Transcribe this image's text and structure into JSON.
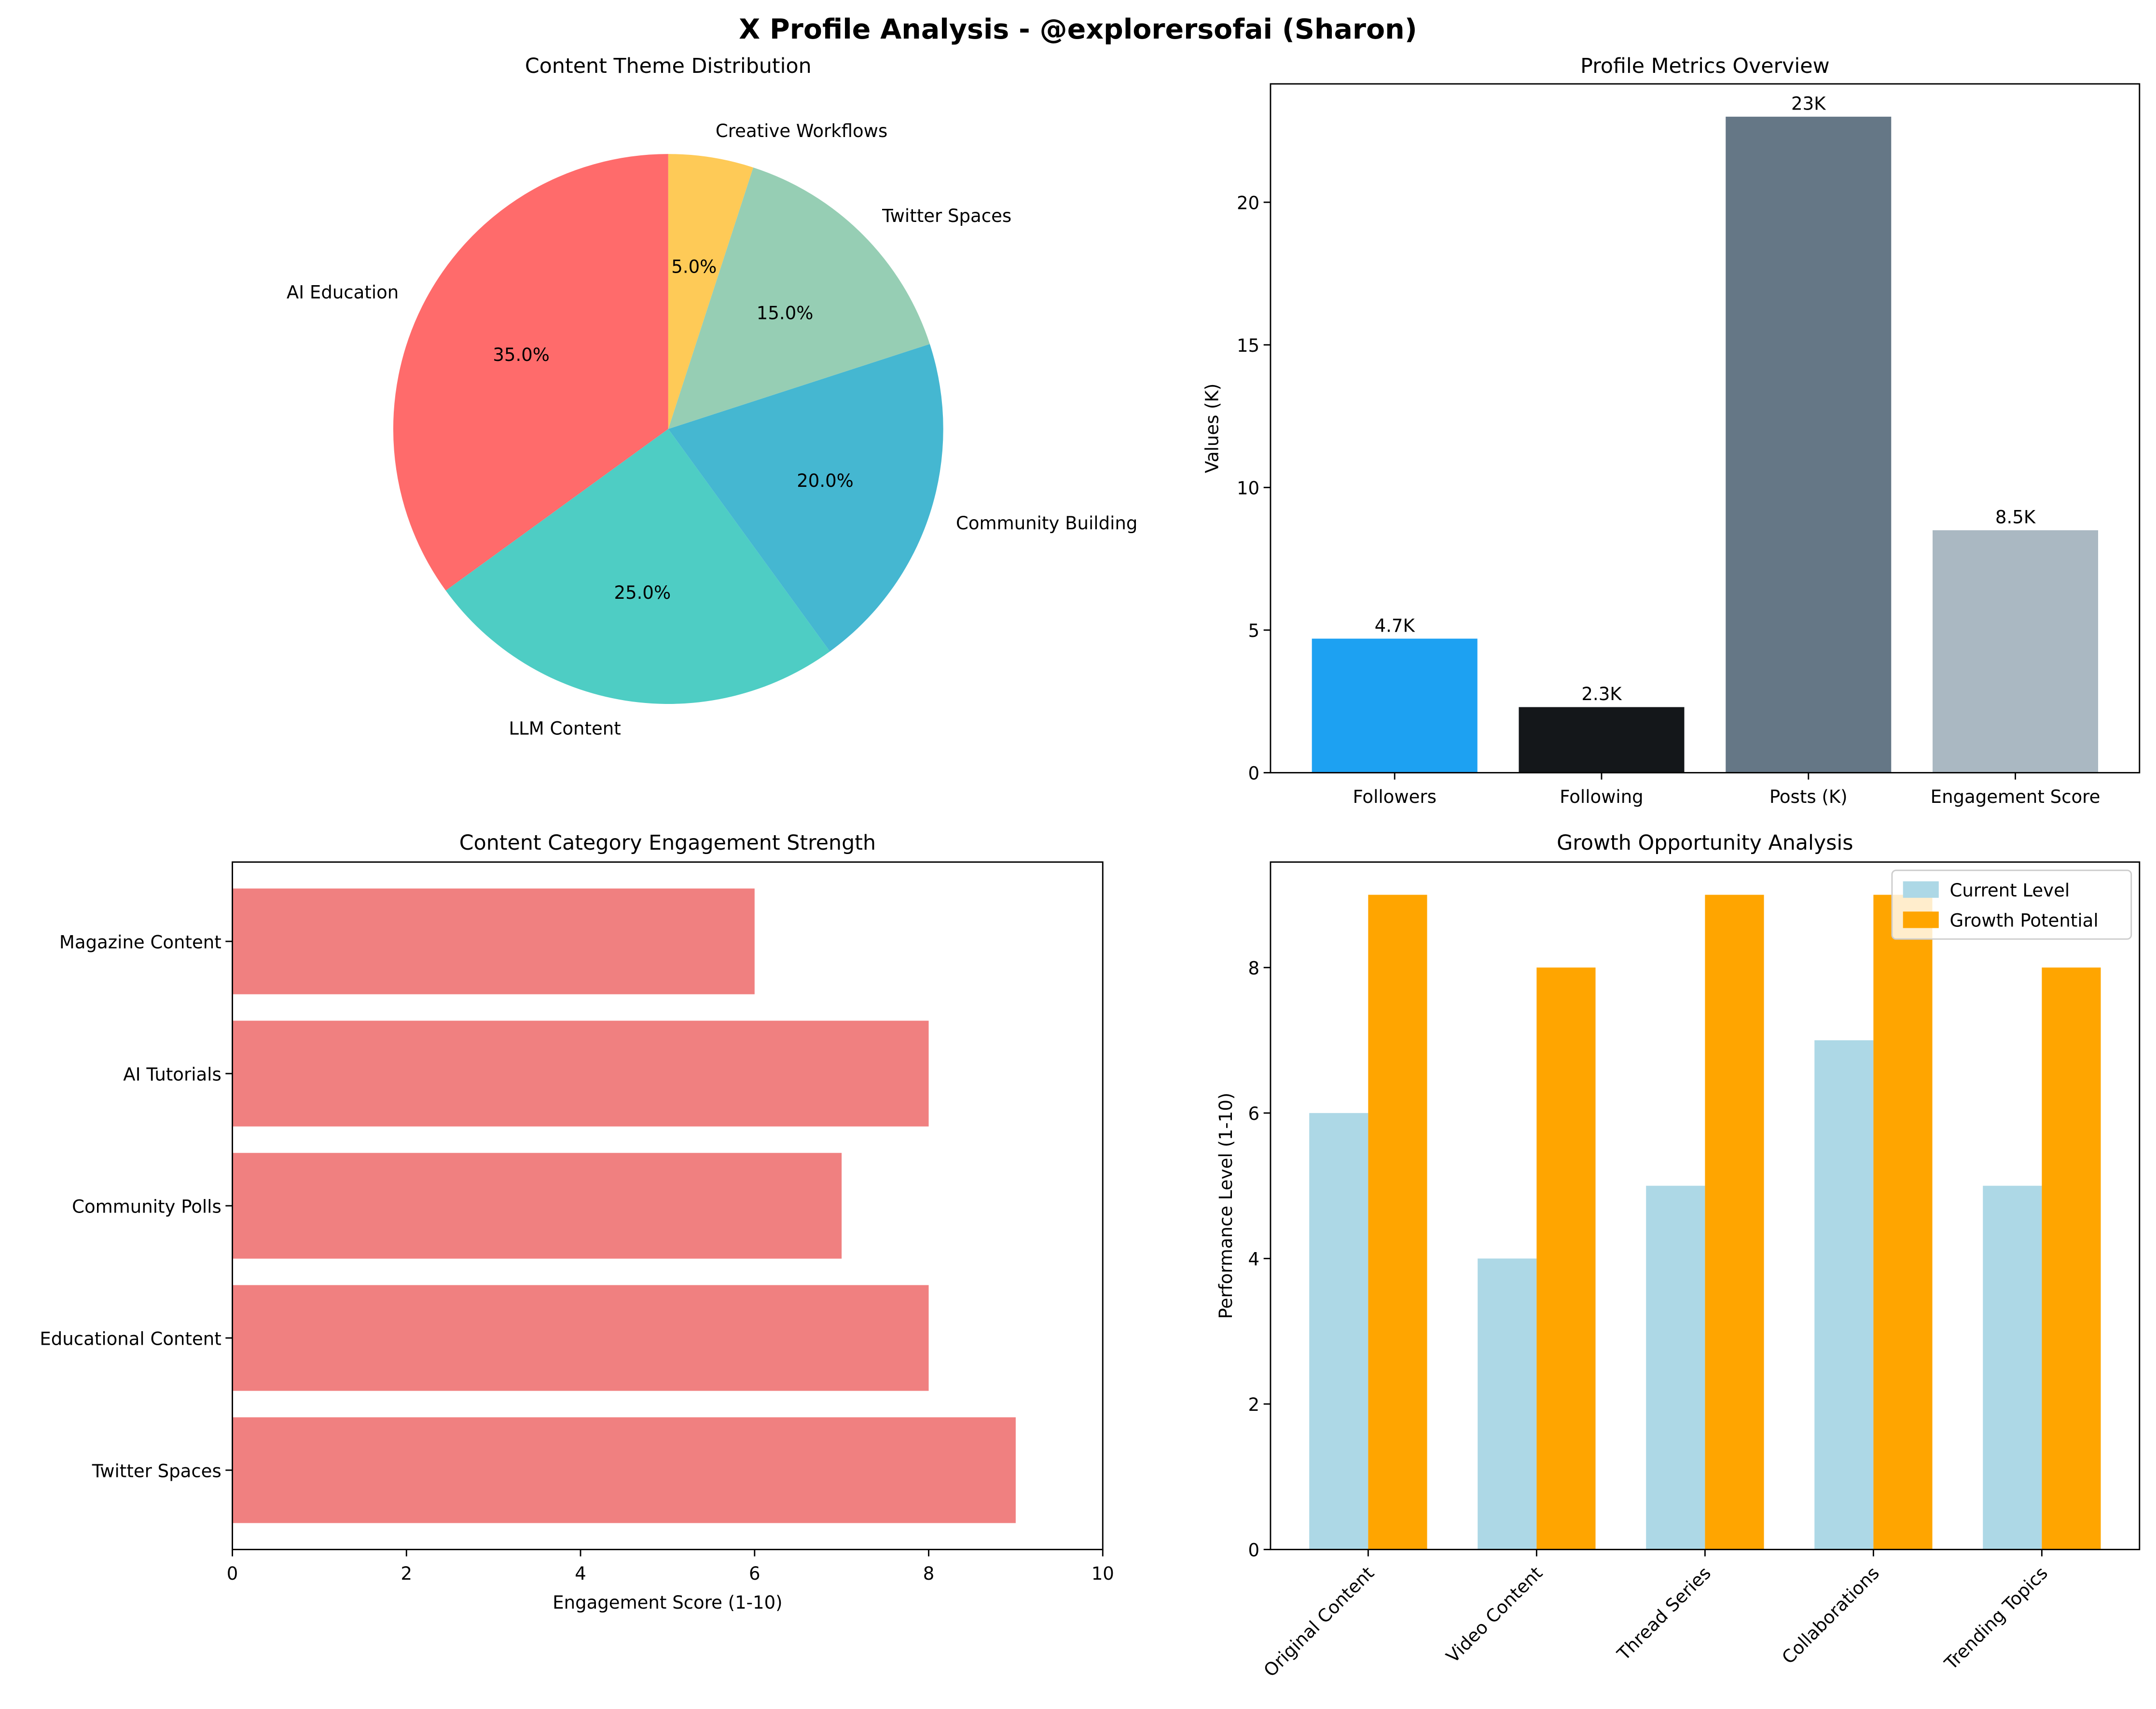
{
  "title": "X Profile Analysis - @explorersofai (Sharon)",
  "chart_data": [
    {
      "type": "pie",
      "title": "Content Theme Distribution",
      "categories": [
        "AI Education",
        "LLM Content",
        "Community Building",
        "Twitter Spaces",
        "Creative Workflows"
      ],
      "values": [
        35,
        25,
        20,
        15,
        5
      ],
      "labels": [
        "35.0%",
        "25.0%",
        "20.0%",
        "15.0%",
        "5.0%"
      ],
      "colors": [
        "#FF6B6B",
        "#4ECDC4",
        "#45B7D1",
        "#96CEB4",
        "#FECA57"
      ],
      "start_angle": 90
    },
    {
      "type": "bar",
      "title": "Profile Metrics Overview",
      "categories": [
        "Followers",
        "Following",
        "Posts (K)",
        "Engagement Score"
      ],
      "values": [
        4.7,
        2.3,
        23,
        8.5
      ],
      "data_labels": [
        "4.7K",
        "2.3K",
        "23K",
        "8.5K"
      ],
      "colors": [
        "#1DA1F2",
        "#14171A",
        "#657786",
        "#AAB8C2"
      ],
      "xlabel": "",
      "ylabel": "Values (K)",
      "ylim": [
        0,
        24.15
      ],
      "yticks": [
        0,
        5,
        10,
        15,
        20
      ]
    },
    {
      "type": "bar",
      "orientation": "horizontal",
      "title": "Content Category Engagement Strength",
      "categories": [
        "Twitter Spaces",
        "Educational Content",
        "Community Polls",
        "AI Tutorials",
        "Magazine Content"
      ],
      "values": [
        9,
        8,
        7,
        8,
        6
      ],
      "color": "#F08080",
      "xlabel": "Engagement Score (1-10)",
      "xlim": [
        0,
        10
      ],
      "xticks": [
        0,
        2,
        4,
        6,
        8,
        10
      ]
    },
    {
      "type": "bar",
      "title": "Growth Opportunity Analysis",
      "categories": [
        "Original Content",
        "Video Content",
        "Thread Series",
        "Collaborations",
        "Trending Topics"
      ],
      "series": [
        {
          "name": "Current Level",
          "values": [
            6,
            4,
            5,
            7,
            5
          ],
          "color": "#ADD8E6"
        },
        {
          "name": "Growth Potential",
          "values": [
            9,
            8,
            9,
            9,
            8
          ],
          "color": "#FFA500"
        }
      ],
      "ylabel": "Performance Level (1-10)",
      "ylim": [
        0,
        9.45
      ],
      "yticks": [
        0,
        2,
        4,
        6,
        8
      ],
      "legend": "top-right"
    }
  ]
}
